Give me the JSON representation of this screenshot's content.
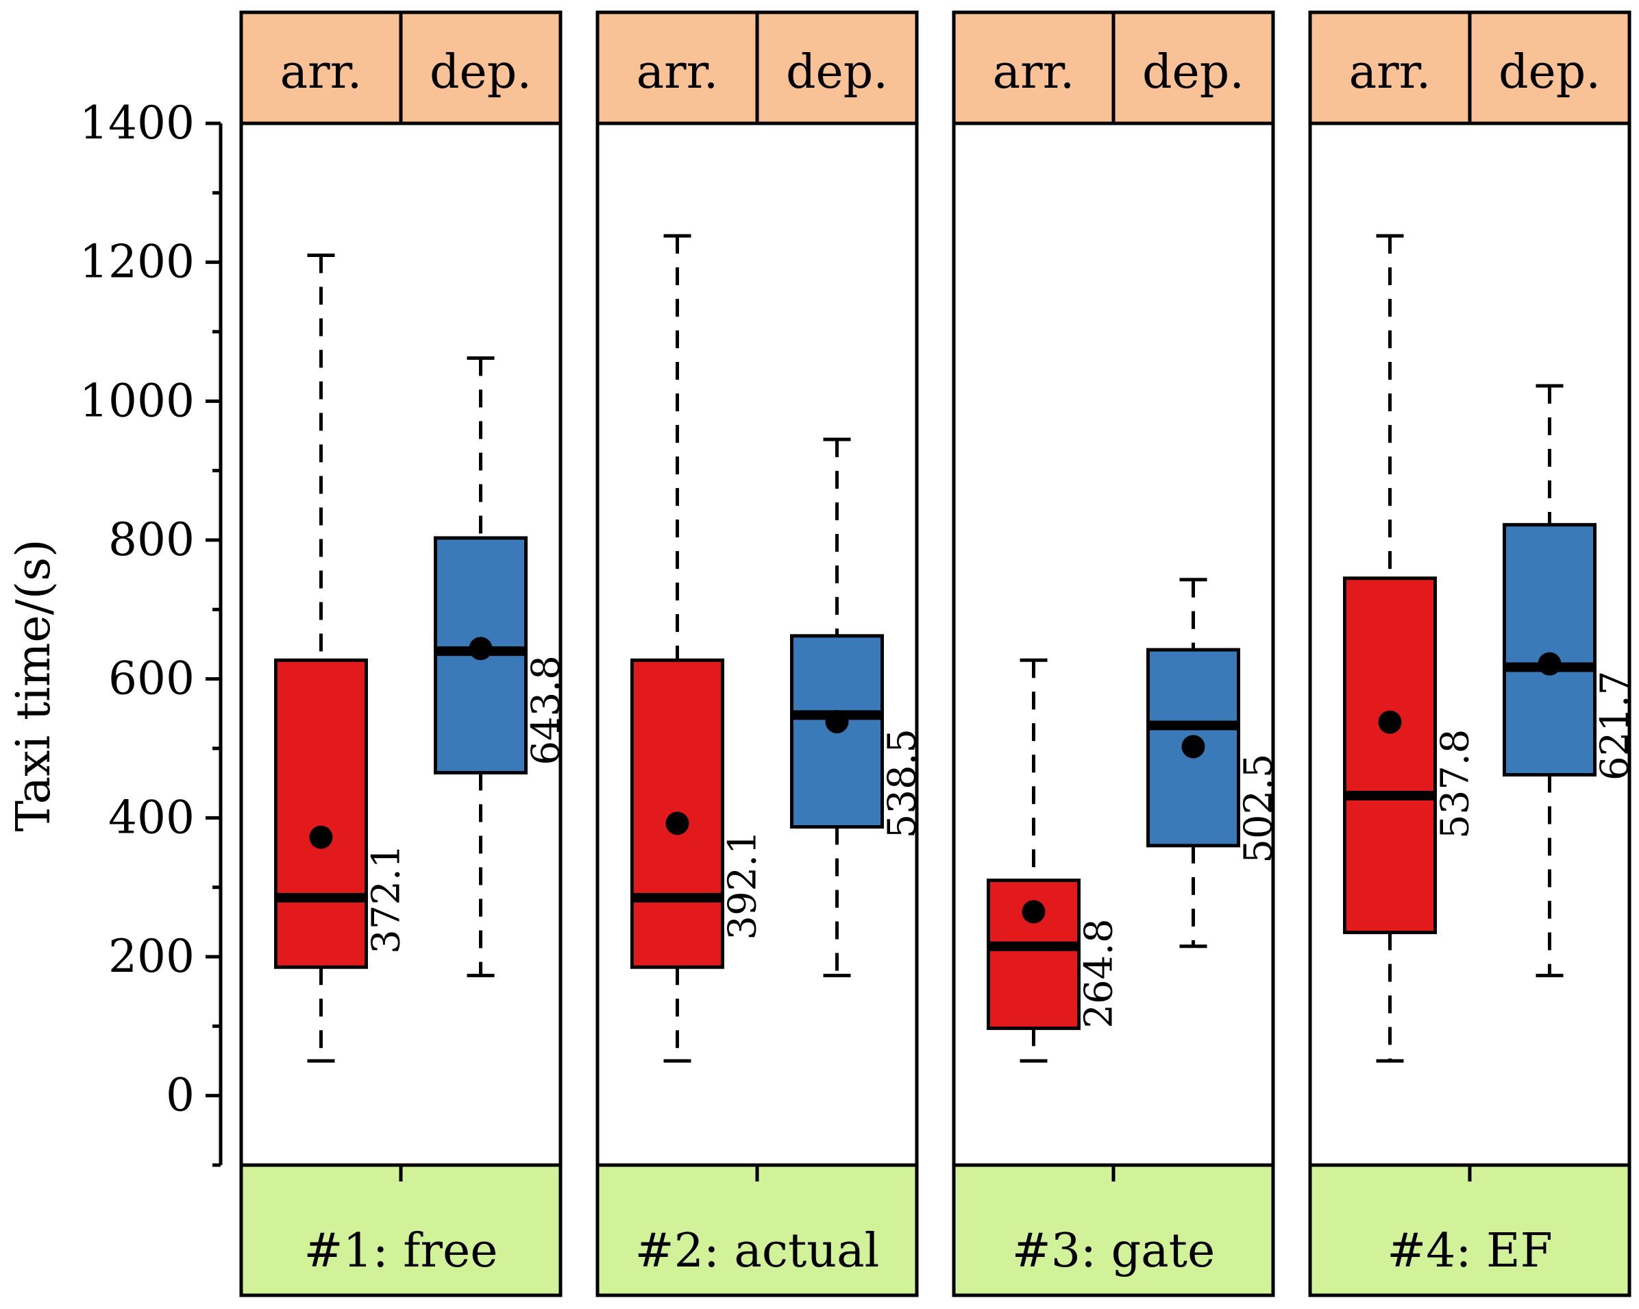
{
  "colors": {
    "arrival": "#e31a1c",
    "departure": "#3a7ab8",
    "header": "#f8c196",
    "footer": "#d1f299",
    "mean": "#000000"
  },
  "chart_data": {
    "type": "boxplot",
    "ylabel": "Taxi time/(s)",
    "ylim": [
      -100,
      1400
    ],
    "yticks": [
      "0",
      "200",
      "400",
      "600",
      "800",
      "1000",
      "1200",
      "1400"
    ],
    "ytick_values": [
      0,
      200,
      400,
      600,
      800,
      1000,
      1200,
      1400
    ],
    "group_labels": [
      "arr.",
      "dep."
    ],
    "panels": [
      {
        "label": "#1: free",
        "boxes": [
          {
            "group": "arr.",
            "whisker_low": 50,
            "q1": 185,
            "median": 285,
            "q3": 627,
            "whisker_high": 1210,
            "mean": 372.1,
            "mean_label": "372.1"
          },
          {
            "group": "dep.",
            "whisker_low": 173,
            "q1": 465,
            "median": 640,
            "q3": 803,
            "whisker_high": 1062,
            "mean": 643.8,
            "mean_label": "643.8"
          }
        ]
      },
      {
        "label": "#2: actual",
        "boxes": [
          {
            "group": "arr.",
            "whisker_low": 50,
            "q1": 185,
            "median": 285,
            "q3": 627,
            "whisker_high": 1238,
            "mean": 392.1,
            "mean_label": "392.1"
          },
          {
            "group": "dep.",
            "whisker_low": 173,
            "q1": 387,
            "median": 548,
            "q3": 662,
            "whisker_high": 945,
            "mean": 538.5,
            "mean_label": "538.5"
          }
        ]
      },
      {
        "label": "#3: gate",
        "boxes": [
          {
            "group": "arr.",
            "whisker_low": 50,
            "q1": 97,
            "median": 215,
            "q3": 310,
            "whisker_high": 627,
            "mean": 264.8,
            "mean_label": "264.8"
          },
          {
            "group": "dep.",
            "whisker_low": 215,
            "q1": 360,
            "median": 533,
            "q3": 642,
            "whisker_high": 743,
            "mean": 502.5,
            "mean_label": "502.5"
          }
        ]
      },
      {
        "label": "#4: EF",
        "boxes": [
          {
            "group": "arr.",
            "whisker_low": 50,
            "q1": 235,
            "median": 432,
            "q3": 745,
            "whisker_high": 1238,
            "mean": 537.8,
            "mean_label": "537.8"
          },
          {
            "group": "dep.",
            "whisker_low": 173,
            "q1": 462,
            "median": 617,
            "q3": 822,
            "whisker_high": 1022,
            "mean": 621.7,
            "mean_label": "621.7"
          }
        ]
      }
    ]
  }
}
